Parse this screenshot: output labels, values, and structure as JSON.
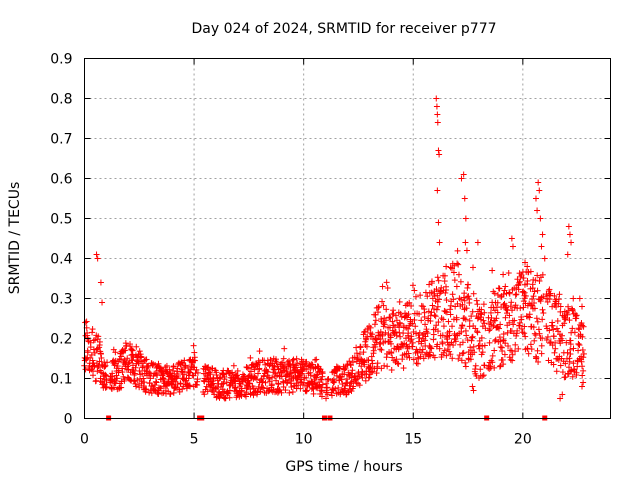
{
  "chart_data": {
    "type": "scatter",
    "title": "Day 024 of 2024, SRMTID for receiver p777",
    "xlabel": "GPS time / hours",
    "ylabel": "SRMTID / TECUs",
    "xlim": [
      0,
      24
    ],
    "ylim": [
      0,
      0.9
    ],
    "xticks": [
      0,
      5,
      10,
      15,
      20
    ],
    "xtick_labels": [
      "0",
      "5",
      "10",
      "15",
      "20"
    ],
    "yticks": [
      0,
      0.1,
      0.2,
      0.3,
      0.4,
      0.5,
      0.6,
      0.7,
      0.8,
      0.9
    ],
    "ytick_labels": [
      "0",
      "0.1",
      "0.2",
      "0.3",
      "0.4",
      "0.5",
      "0.6",
      "0.7",
      "0.8",
      "0.9"
    ],
    "grid": true,
    "marker": "+",
    "color": "#ff0000",
    "data_gaps_at_zero_hours": [
      1.1,
      5.25,
      5.35,
      10.95,
      11.2,
      18.35,
      21.0
    ],
    "trend_envelope": {
      "x": [
        0,
        0.5,
        1.0,
        1.5,
        2.0,
        3.0,
        4.0,
        5.0,
        6.0,
        7.0,
        8.0,
        9.0,
        10.0,
        11.0,
        12.0,
        13.0,
        13.5,
        14.0,
        15.0,
        16.0,
        17.0,
        18.0,
        19.0,
        20.0,
        21.0,
        22.0,
        22.8
      ],
      "low": [
        0.11,
        0.09,
        0.07,
        0.07,
        0.09,
        0.06,
        0.06,
        0.07,
        0.05,
        0.05,
        0.06,
        0.06,
        0.07,
        0.05,
        0.06,
        0.1,
        0.12,
        0.12,
        0.13,
        0.15,
        0.15,
        0.1,
        0.13,
        0.15,
        0.13,
        0.1,
        0.1
      ],
      "high": [
        0.25,
        0.22,
        0.15,
        0.15,
        0.2,
        0.14,
        0.13,
        0.16,
        0.12,
        0.12,
        0.15,
        0.15,
        0.15,
        0.12,
        0.14,
        0.24,
        0.3,
        0.27,
        0.3,
        0.35,
        0.4,
        0.3,
        0.33,
        0.37,
        0.37,
        0.3,
        0.25
      ]
    },
    "peaks": [
      {
        "x": 0.55,
        "y": 0.41
      },
      {
        "x": 0.6,
        "y": 0.4
      },
      {
        "x": 0.75,
        "y": 0.34
      },
      {
        "x": 0.8,
        "y": 0.29
      },
      {
        "x": 13.6,
        "y": 0.33
      },
      {
        "x": 15.05,
        "y": 0.32
      },
      {
        "x": 16.05,
        "y": 0.8
      },
      {
        "x": 16.08,
        "y": 0.78
      },
      {
        "x": 16.1,
        "y": 0.76
      },
      {
        "x": 16.12,
        "y": 0.74
      },
      {
        "x": 16.15,
        "y": 0.67
      },
      {
        "x": 16.18,
        "y": 0.66
      },
      {
        "x": 16.1,
        "y": 0.57
      },
      {
        "x": 16.15,
        "y": 0.49
      },
      {
        "x": 16.2,
        "y": 0.44
      },
      {
        "x": 16.5,
        "y": 0.38
      },
      {
        "x": 17.2,
        "y": 0.6
      },
      {
        "x": 17.3,
        "y": 0.61
      },
      {
        "x": 17.35,
        "y": 0.55
      },
      {
        "x": 17.4,
        "y": 0.5
      },
      {
        "x": 17.38,
        "y": 0.44
      },
      {
        "x": 17.45,
        "y": 0.42
      },
      {
        "x": 17.95,
        "y": 0.44
      },
      {
        "x": 18.6,
        "y": 0.37
      },
      {
        "x": 19.1,
        "y": 0.36
      },
      {
        "x": 19.2,
        "y": 0.33
      },
      {
        "x": 19.5,
        "y": 0.45
      },
      {
        "x": 19.55,
        "y": 0.43
      },
      {
        "x": 20.1,
        "y": 0.39
      },
      {
        "x": 20.2,
        "y": 0.38
      },
      {
        "x": 20.7,
        "y": 0.59
      },
      {
        "x": 20.75,
        "y": 0.57
      },
      {
        "x": 20.6,
        "y": 0.55
      },
      {
        "x": 20.65,
        "y": 0.52
      },
      {
        "x": 20.8,
        "y": 0.5
      },
      {
        "x": 20.9,
        "y": 0.46
      },
      {
        "x": 20.85,
        "y": 0.43
      },
      {
        "x": 21.0,
        "y": 0.4
      },
      {
        "x": 22.1,
        "y": 0.48
      },
      {
        "x": 22.15,
        "y": 0.46
      },
      {
        "x": 22.2,
        "y": 0.44
      },
      {
        "x": 22.05,
        "y": 0.41
      },
      {
        "x": 22.3,
        "y": 0.3
      },
      {
        "x": 22.6,
        "y": 0.3
      },
      {
        "x": 22.7,
        "y": 0.28
      }
    ],
    "lows": [
      {
        "x": 17.7,
        "y": 0.08
      },
      {
        "x": 17.75,
        "y": 0.07
      },
      {
        "x": 21.7,
        "y": 0.05
      },
      {
        "x": 21.8,
        "y": 0.06
      },
      {
        "x": 22.7,
        "y": 0.08
      },
      {
        "x": 22.75,
        "y": 0.09
      }
    ],
    "data_end_hours": 22.8
  }
}
